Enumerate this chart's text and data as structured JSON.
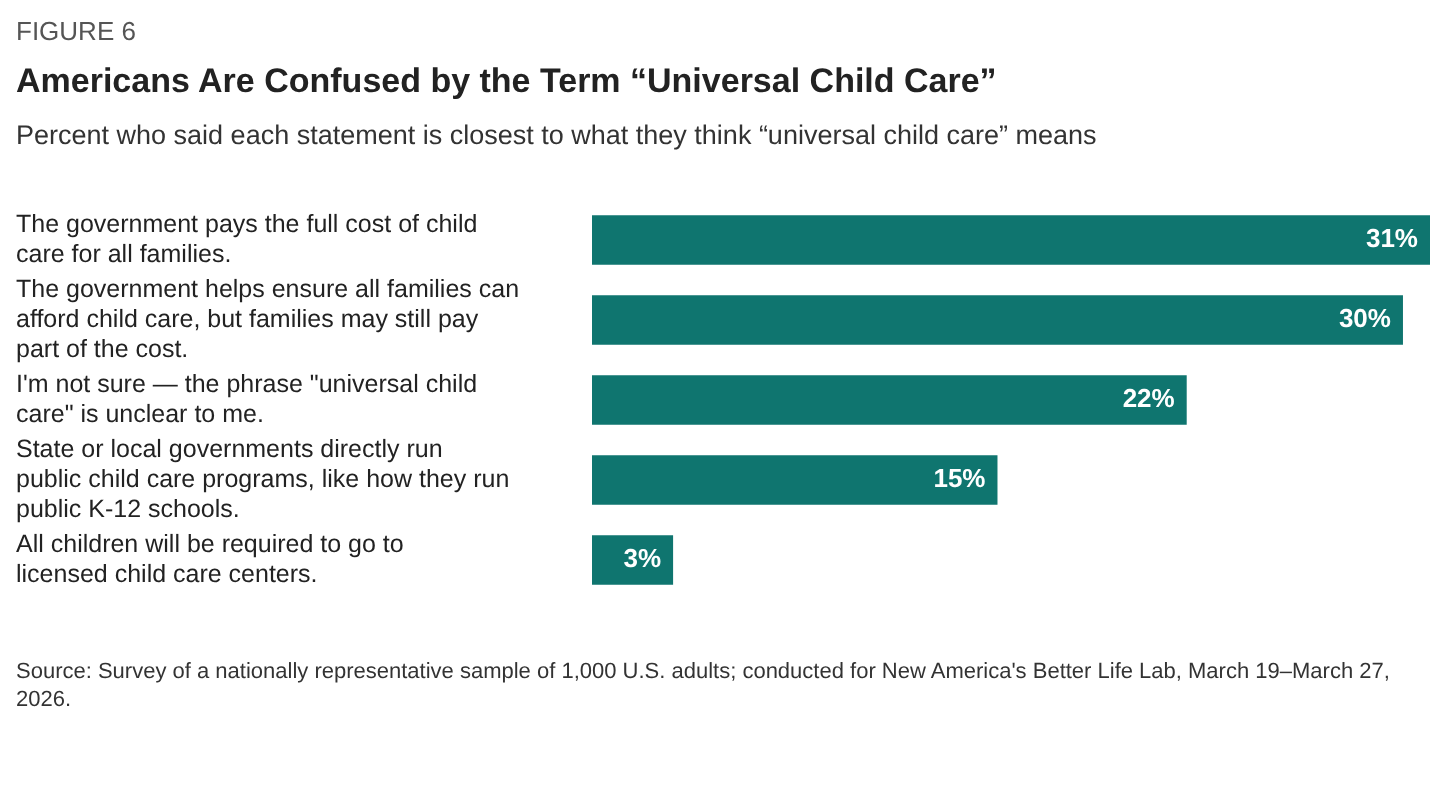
{
  "chart_data": {
    "type": "bar",
    "orientation": "horizontal",
    "title": "Americans Are Confused by the Term “Universal Child Care”",
    "subtitle": "Percent who said each statement is closest to what they think “universal child care” means",
    "categories": [
      "The government pays the full cost of child care for all families.",
      "The government helps ensure all families can afford child care, but families may still pay part of the cost.",
      "I'm not sure — the phrase \"universal child care\" is unclear to me.",
      "State or local governments directly run public child care programs, like how they run public K-12 schools.",
      "All children will be required to go to licensed child care centers."
    ],
    "values": [
      31,
      30,
      22,
      15,
      3
    ],
    "value_labels": [
      "31%",
      "30%",
      "22%",
      "15%",
      "3%"
    ],
    "color": "#0f756f",
    "annotations": [
      "FIGURE 6",
      "Source: Survey of a nationally representative sample of 1,000 U.S. adults; conducted for New America's Better Life Lab, March 19–March 27, 2026."
    ]
  }
}
